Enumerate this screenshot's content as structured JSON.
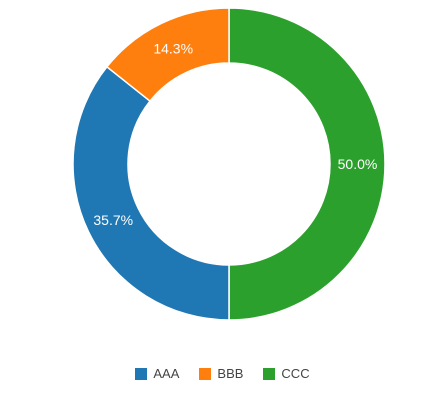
{
  "chart_data": {
    "type": "pie",
    "variant": "donut",
    "categories": [
      "AAA",
      "BBB",
      "CCC"
    ],
    "values": [
      35.7,
      14.3,
      50.0
    ],
    "labels": [
      "35.7%",
      "14.3%",
      "50.0%"
    ],
    "colors": [
      "#1f77b4",
      "#ff7f0e",
      "#2ca02c"
    ],
    "legend_position": "bottom"
  }
}
